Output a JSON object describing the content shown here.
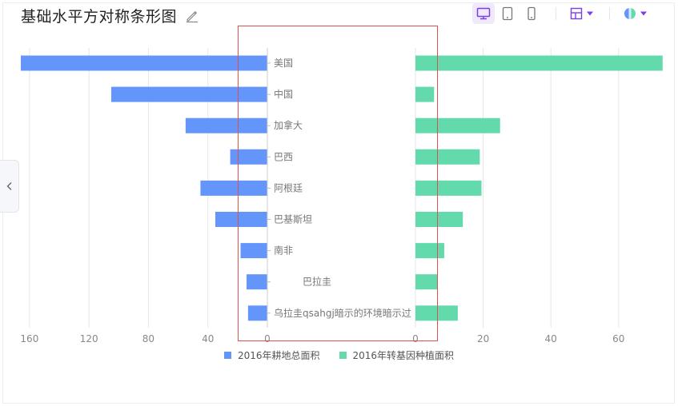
{
  "header": {
    "title": "基础水平方对称条形图"
  },
  "toolbar": {
    "icons": [
      "desktop-icon",
      "tablet-icon",
      "mobile-icon",
      "layout-icon",
      "theme-icon"
    ],
    "accent": "#7b3fe4"
  },
  "legend": {
    "items": [
      {
        "label": "2016年耕地总面积",
        "color": "#6495fa"
      },
      {
        "label": "2016年转基因种植面积",
        "color": "#62daab"
      }
    ]
  },
  "chart_data": {
    "type": "bar",
    "orientation": "horizontal-symmetric",
    "title": "基础水平方对称条形图",
    "categories": [
      "美国",
      "中国",
      "加拿大",
      "巴西",
      "阿根廷",
      "巴基斯坦",
      "南非",
      "巴拉圭",
      "乌拉圭qsahgj暗示的环境暗示过"
    ],
    "series": [
      {
        "name": "2016年耕地总面积",
        "side": "left",
        "color": "#6495fa",
        "values": [
          166,
          105,
          55,
          25,
          45,
          35,
          18,
          14,
          13
        ]
      },
      {
        "name": "2016年转基因种植面积",
        "side": "right",
        "color": "#62daab",
        "values": [
          73,
          5.5,
          25,
          19,
          19.5,
          14,
          8.5,
          6.5,
          12.5
        ]
      }
    ],
    "left_axis": {
      "ticks": [
        "160",
        "120",
        "80",
        "40",
        "0"
      ],
      "range": [
        0,
        160
      ],
      "reversed": true
    },
    "right_axis": {
      "ticks": [
        "0",
        "20",
        "40",
        "60"
      ],
      "range": [
        0,
        73
      ]
    },
    "grid": true,
    "legend_position": "bottom"
  }
}
